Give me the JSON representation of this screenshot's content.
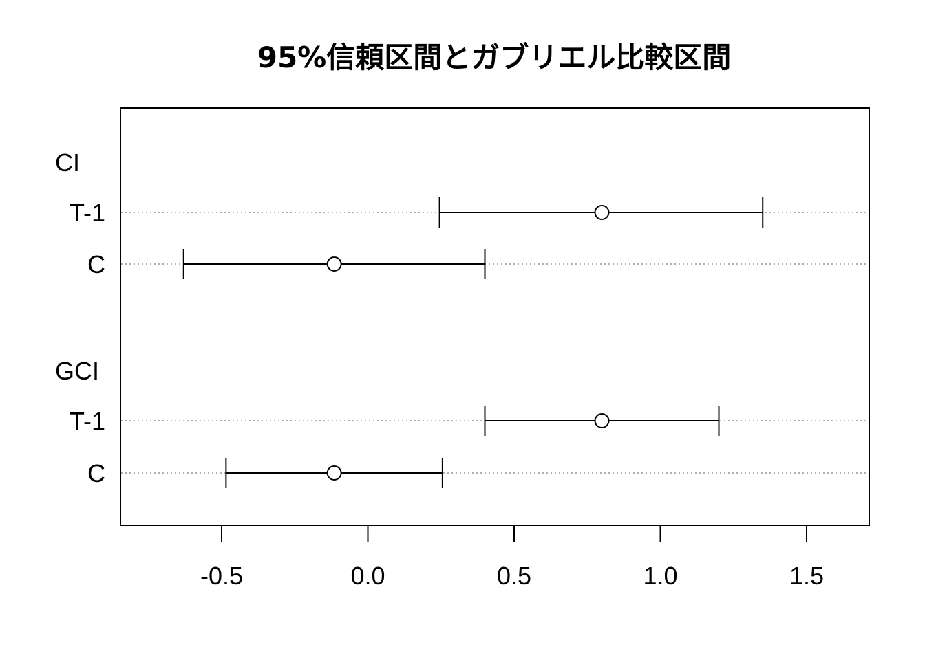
{
  "chart_data": {
    "type": "errorbar",
    "title": "95%信頼区間とガブリエル比較区間",
    "xlabel": "",
    "ylabel": "",
    "xlim": [
      -0.85,
      1.72
    ],
    "xticks": [
      "-0.5",
      "0.0",
      "0.5",
      "1.0",
      "1.5"
    ],
    "xtick_values": [
      -0.5,
      0.0,
      0.5,
      1.0,
      1.5
    ],
    "grid": "dotted horizontal lines at each row",
    "groups": [
      {
        "label": "CI",
        "rows": [
          {
            "label": "T-1",
            "estimate": 0.8,
            "lower": 0.245,
            "upper": 1.35
          },
          {
            "label": "C",
            "estimate": -0.115,
            "lower": -0.63,
            "upper": 0.4
          }
        ]
      },
      {
        "label": "GCI",
        "rows": [
          {
            "label": "T-1",
            "estimate": 0.8,
            "lower": 0.4,
            "upper": 1.2
          },
          {
            "label": "C",
            "estimate": -0.115,
            "lower": -0.485,
            "upper": 0.255
          }
        ]
      }
    ]
  }
}
